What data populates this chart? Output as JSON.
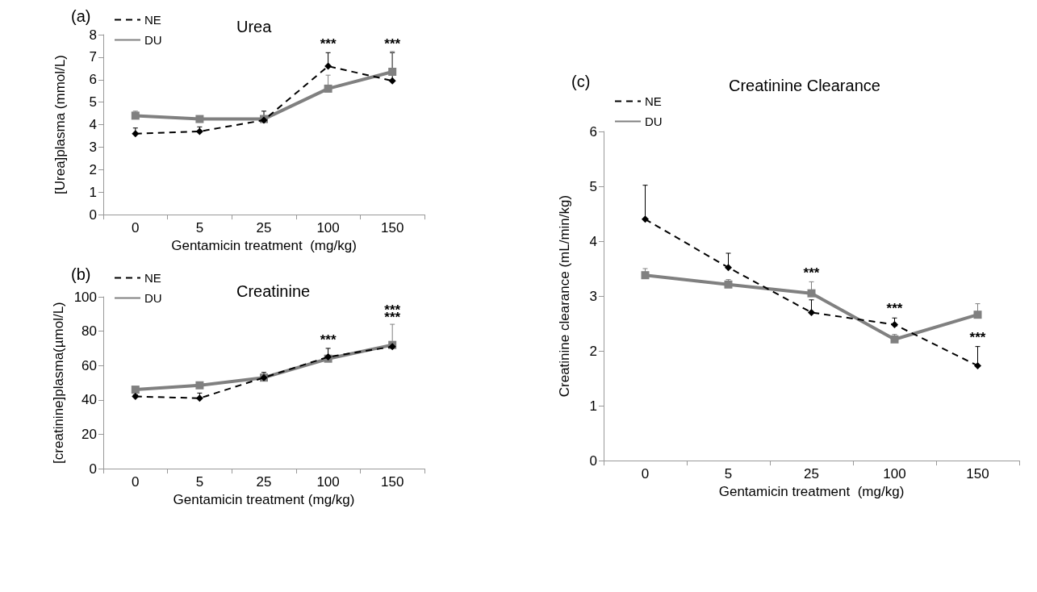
{
  "chart_data": [
    {
      "type": "line",
      "title": "Urea",
      "xlabel": "Gentamicin treatment  (mg/kg)",
      "ylabel": "[Urea]plasma (mmol/L)",
      "categories": [
        "0",
        "5",
        "25",
        "100",
        "150"
      ],
      "ylim": [
        0,
        8
      ],
      "yticks": [
        0,
        1,
        2,
        3,
        4,
        5,
        6,
        7,
        8
      ],
      "grid": false,
      "legend": "top left",
      "series": [
        {
          "name": "NE",
          "color": "#000000",
          "marker": "diamond",
          "line_style": "dashed",
          "values": [
            3.6,
            3.7,
            4.2,
            6.6,
            5.95
          ],
          "errors": [
            [
              3.6,
              3.85
            ],
            [
              3.7,
              3.9
            ],
            [
              4.2,
              4.6
            ],
            [
              6.6,
              7.2
            ],
            [
              5.95,
              7.2
            ]
          ]
        },
        {
          "name": "DU",
          "color": "#808080",
          "marker": "square",
          "line_style": "solid",
          "values": [
            4.4,
            4.25,
            4.25,
            5.6,
            6.35
          ],
          "errors": [
            [
              4.4,
              4.6
            ],
            [
              4.25,
              4.35
            ],
            [
              4.25,
              4.4
            ],
            [
              5.6,
              6.2
            ],
            [
              6.35,
              7.25
            ]
          ]
        }
      ],
      "annotations": [
        "(a)",
        {
          "text": "***",
          "x": "100",
          "y": 7.3
        },
        {
          "text": "***",
          "x": "150",
          "y": 7.3
        }
      ]
    },
    {
      "type": "line",
      "title": "Creatinine",
      "xlabel": "Gentamicin treatment (mg/kg)",
      "ylabel": "[creatinine]plasma(µmol/L)",
      "categories": [
        "0",
        "5",
        "25",
        "100",
        "150"
      ],
      "ylim": [
        0,
        100
      ],
      "yticks": [
        0,
        20,
        40,
        60,
        80,
        100
      ],
      "grid": false,
      "legend": "top left",
      "series": [
        {
          "name": "NE",
          "color": "#000000",
          "marker": "diamond",
          "line_style": "dashed",
          "values": [
            42,
            41,
            53,
            65,
            71
          ],
          "errors": [
            [
              42,
              43
            ],
            [
              41,
              44
            ],
            [
              53,
              56
            ],
            [
              65,
              70
            ],
            [
              71,
              73
            ]
          ]
        },
        {
          "name": "DU",
          "color": "#808080",
          "marker": "square",
          "line_style": "solid",
          "values": [
            46,
            48.5,
            53,
            64,
            72
          ],
          "errors": [
            [
              46,
              47
            ],
            [
              48.5,
              49.5
            ],
            [
              53,
              54
            ],
            [
              64,
              66
            ],
            [
              72,
              84
            ]
          ]
        }
      ],
      "annotations": [
        "(b)",
        {
          "text": "***",
          "x": "100",
          "y": 71
        },
        {
          "text": "***",
          "x": "150",
          "y": 84
        },
        {
          "text": "***",
          "x": "150",
          "y": 84
        }
      ]
    },
    {
      "type": "line",
      "title": "Creatinine Clearance",
      "xlabel": "Gentamicin treatment  (mg/kg)",
      "ylabel": "Creatinine clearance (mL/min/kg)",
      "categories": [
        "0",
        "5",
        "25",
        "100",
        "150"
      ],
      "ylim": [
        0,
        6
      ],
      "yticks": [
        0,
        1,
        2,
        3,
        4,
        5,
        6
      ],
      "grid": false,
      "legend": "top left",
      "series": [
        {
          "name": "NE",
          "color": "#000000",
          "marker": "diamond",
          "line_style": "dashed",
          "values": [
            4.4,
            3.52,
            2.7,
            2.48,
            1.73
          ],
          "errors": [
            [
              4.4,
              5.02
            ],
            [
              3.52,
              3.78
            ],
            [
              2.7,
              2.93
            ],
            [
              2.48,
              2.6
            ],
            [
              1.73,
              2.08
            ]
          ]
        },
        {
          "name": "DU",
          "color": "#808080",
          "marker": "square",
          "line_style": "solid",
          "values": [
            3.38,
            3.21,
            3.05,
            2.21,
            2.66
          ],
          "errors": [
            [
              3.38,
              3.5
            ],
            [
              3.21,
              3.3
            ],
            [
              3.05,
              3.26
            ],
            [
              2.21,
              2.3
            ],
            [
              2.66,
              2.86
            ]
          ]
        }
      ],
      "annotations": [
        "(c)",
        {
          "text": "***",
          "x": "25",
          "y": 3.3
        },
        {
          "text": "***",
          "x": "100",
          "y": 2.65
        },
        {
          "text": "***",
          "x": "150",
          "y": 2.12
        }
      ]
    }
  ]
}
